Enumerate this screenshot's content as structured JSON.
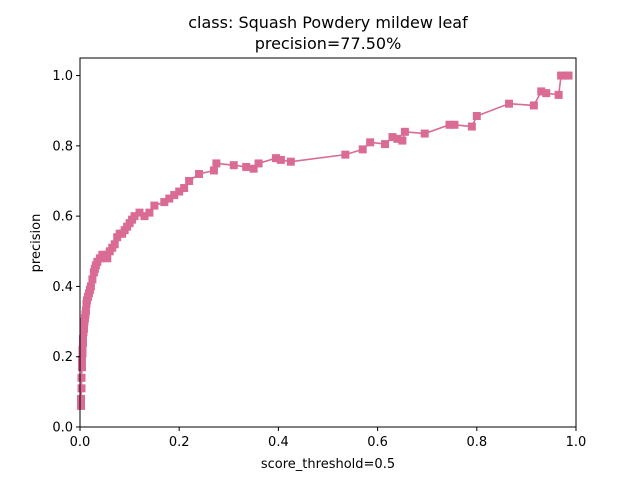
{
  "chart_data": {
    "type": "line",
    "title": "class: Squash Powdery mildew leaf",
    "subtitle": "precision=77.50%",
    "xlabel": "score_threshold=0.5",
    "ylabel": "precision",
    "xlim": [
      0.0,
      1.0
    ],
    "ylim": [
      0.0,
      1.05
    ],
    "xticks": [
      "0.0",
      "0.2",
      "0.4",
      "0.6",
      "0.8",
      "1.0"
    ],
    "yticks": [
      "0.0",
      "0.2",
      "0.4",
      "0.6",
      "0.8",
      "1.0"
    ],
    "grid": false,
    "series": [
      {
        "color": "#d96b94",
        "marker": "square",
        "x": [
          0.002,
          0.002,
          0.003,
          0.003,
          0.004,
          0.004,
          0.005,
          0.005,
          0.006,
          0.006,
          0.007,
          0.008,
          0.008,
          0.009,
          0.01,
          0.011,
          0.012,
          0.013,
          0.014,
          0.016,
          0.018,
          0.02,
          0.022,
          0.025,
          0.028,
          0.03,
          0.032,
          0.035,
          0.04,
          0.045,
          0.05,
          0.055,
          0.06,
          0.065,
          0.07,
          0.075,
          0.08,
          0.085,
          0.09,
          0.095,
          0.1,
          0.105,
          0.11,
          0.12,
          0.13,
          0.14,
          0.15,
          0.17,
          0.18,
          0.19,
          0.2,
          0.21,
          0.22,
          0.24,
          0.27,
          0.275,
          0.31,
          0.335,
          0.35,
          0.36,
          0.395,
          0.405,
          0.425,
          0.535,
          0.57,
          0.585,
          0.615,
          0.63,
          0.64,
          0.65,
          0.655,
          0.695,
          0.745,
          0.755,
          0.79,
          0.8,
          0.865,
          0.915,
          0.93,
          0.94,
          0.965,
          0.97,
          0.98,
          0.985
        ],
        "y": [
          0.06,
          0.08,
          0.11,
          0.14,
          0.17,
          0.19,
          0.21,
          0.22,
          0.24,
          0.25,
          0.27,
          0.28,
          0.29,
          0.3,
          0.31,
          0.32,
          0.33,
          0.35,
          0.36,
          0.37,
          0.38,
          0.39,
          0.4,
          0.42,
          0.44,
          0.45,
          0.46,
          0.47,
          0.48,
          0.49,
          0.49,
          0.48,
          0.5,
          0.51,
          0.52,
          0.54,
          0.55,
          0.55,
          0.56,
          0.57,
          0.58,
          0.59,
          0.6,
          0.61,
          0.6,
          0.61,
          0.63,
          0.64,
          0.65,
          0.66,
          0.67,
          0.68,
          0.7,
          0.72,
          0.73,
          0.75,
          0.745,
          0.74,
          0.735,
          0.75,
          0.765,
          0.76,
          0.755,
          0.775,
          0.79,
          0.81,
          0.805,
          0.825,
          0.82,
          0.815,
          0.84,
          0.835,
          0.86,
          0.86,
          0.855,
          0.885,
          0.92,
          0.915,
          0.955,
          0.95,
          0.945,
          1.0,
          1.0,
          1.0
        ]
      }
    ]
  }
}
